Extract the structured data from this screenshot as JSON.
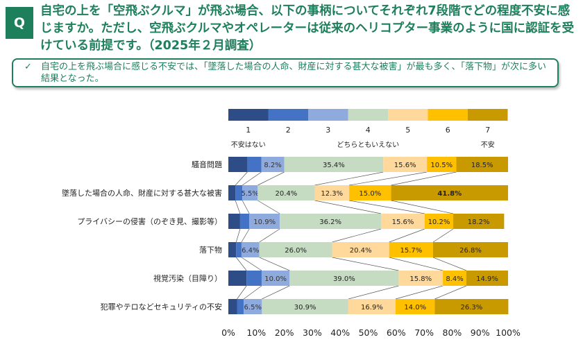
{
  "question": {
    "badge": "Q",
    "text": "自宅の上を「空飛ぶクルマ」が飛ぶ場合、以下の事柄についてそれぞれ7段階でどの程度不安に感じますか。ただし、空飛ぶクルマやオペレーターは従来のヘリコプター事業のように国に認証を受けている前提です。（2025年２月調査）"
  },
  "answer": {
    "icon": "check-icon",
    "text": "自宅の上を飛ぶ場合に感じる不安では、「墜落した場合の人命、財産に対する甚大な被害」が最も多く、「落下物」が次に多い結果となった。"
  },
  "chart_data": {
    "type": "bar",
    "orientation": "horizontal",
    "stacked": true,
    "scale": {
      "labels": [
        "1",
        "2",
        "3",
        "4",
        "5",
        "6",
        "7"
      ],
      "anchors": {
        "left": "不安はない",
        "middle": "どちらともいえない",
        "right": "不安"
      }
    },
    "colors": [
      "#2e4d87",
      "#4472c4",
      "#8faadc",
      "#c5dcc2",
      "#ffd89b",
      "#ffc000",
      "#c99a00"
    ],
    "categories": [
      "騒音問題",
      "墜落した場合の人命、財産に対する甚大な被害",
      "プライバシーの侵害（のぞき見、撮影等）",
      "落下物",
      "視覚汚染（目障り）",
      "犯罪やテロなどセキュリティの不安"
    ],
    "values": [
      [
        6.8,
        5.0,
        8.2,
        35.4,
        15.6,
        10.5,
        18.5
      ],
      [
        2.5,
        2.5,
        5.5,
        20.4,
        12.3,
        15.0,
        41.8
      ],
      [
        4.2,
        3.3,
        10.9,
        36.2,
        15.6,
        10.2,
        18.2
      ],
      [
        2.8,
        1.9,
        6.4,
        26.0,
        20.4,
        15.7,
        26.8
      ],
      [
        6.5,
        5.4,
        10.0,
        39.0,
        15.8,
        8.4,
        14.9
      ],
      [
        3.1,
        2.4,
        6.5,
        30.9,
        16.9,
        14.0,
        26.3
      ]
    ],
    "labeled_from_index": 2,
    "x_ticks": [
      "0%",
      "10%",
      "20%",
      "30%",
      "40%",
      "50%",
      "60%",
      "70%",
      "80%",
      "90%",
      "100%"
    ],
    "xlim": [
      0,
      100
    ]
  }
}
